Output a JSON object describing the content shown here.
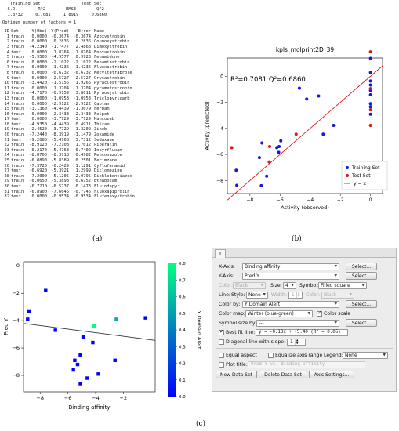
{
  "panel_a": {
    "header_line1": "   Training Set                Test Set",
    "header_line2": "  S.D.        R^2        RMSE        Q^2",
    "stats_line": "  1.8732     0.7081     1.8919     0.6860",
    "optimum_line": "Optimum number of factors = 1",
    "columns": {
      "id": "ID",
      "set": "Set",
      "obs": "Y(Obs)",
      "pred": "Y(Pred)",
      "err": "Error",
      "name": "Name"
    },
    "rows": [
      [
        "1",
        "train",
        "0.0000",
        "-0.3674",
        "-0.3674",
        "Azoxystrobin"
      ],
      [
        "2",
        "train",
        "0.0000",
        "0.2836",
        "0.2836",
        "Coumoxystrobin"
      ],
      [
        "3",
        "train",
        "-4.2340",
        "-1.7477",
        "2.4863",
        "Dimoxystrobin"
      ],
      [
        "4",
        "test",
        "0.0000",
        "1.8764",
        "1.8764",
        "Enoxastrobin"
      ],
      [
        "5",
        "train",
        "-5.9500",
        "-4.9577",
        "0.9923",
        "Fenamidone"
      ],
      [
        "6",
        "train",
        "0.0000",
        "-2.1022",
        "-2.1022",
        "Fenaminstrobin"
      ],
      [
        "7",
        "train",
        "0.0000",
        "-1.4236",
        "-1.4236",
        "Fluoxastrobin"
      ],
      [
        "8",
        "train",
        "0.0000",
        "-0.6732",
        "-0.6732",
        "Metyltetraprole"
      ],
      [
        "9",
        "test",
        "0.0000",
        "-2.5727",
        "-2.5727",
        "Orysastrobin"
      ],
      [
        "10",
        "train",
        "-3.4420",
        "-1.5155",
        "1.9265",
        "Pyraclostrobin"
      ],
      [
        "11",
        "train",
        "0.0000",
        "1.3704",
        "1.3704",
        "pyrametostrobin"
      ],
      [
        "12",
        "train",
        "-4.7170",
        "-0.9159",
        "3.8011",
        "Pyraoxystrobin"
      ],
      [
        "13",
        "train",
        "0.0000",
        "-1.0953",
        "-1.0953",
        "Triclopyricarb"
      ],
      [
        "14",
        "train",
        "0.0000",
        "-2.9122",
        "-2.9122",
        "Captan"
      ],
      [
        "15",
        "train",
        "-3.1360",
        "-4.4439",
        "-1.3079",
        "Ferbam"
      ],
      [
        "16",
        "train",
        "0.0000",
        "-2.3433",
        "-2.3433",
        "Folpet"
      ],
      [
        "17",
        "test",
        "0.0000",
        "-3.7729",
        "-3.7729",
        "Mancozeb"
      ],
      [
        "18",
        "test",
        "-4.9350",
        "-4.4439",
        "0.4911",
        "Thiram"
      ],
      [
        "19",
        "train",
        "-2.4520",
        "-3.7729",
        "-1.3209",
        "Zineb"
      ],
      [
        "20",
        "train",
        "-7.2440",
        "-8.3919",
        "-1.1479",
        "Zoxamide"
      ],
      [
        "21",
        "test",
        "-9.2080",
        "-5.4768",
        "3.7312",
        "Sedaxane"
      ],
      [
        "22",
        "train",
        "-8.9120",
        "-7.2108",
        "1.7012",
        "Piperalin"
      ],
      [
        "23",
        "train",
        "-6.2170",
        "-5.4768",
        "0.7402",
        "Inpyrfluxam"
      ],
      [
        "24",
        "train",
        "-8.8700",
        "-8.3718",
        "0.4982",
        "Penconazole"
      ],
      [
        "25",
        "train",
        "-6.0890",
        "-5.8389",
        "0.2501",
        "Ferimzone"
      ],
      [
        "26",
        "train",
        "-7.3720",
        "-6.2429",
        "1.1291",
        "Cyflufenamid"
      ],
      [
        "27",
        "test",
        "-6.6920",
        "-5.3921",
        "1.2999",
        "Diclomezine"
      ],
      [
        "28",
        "train",
        "-7.2000",
        "-5.1205",
        "2.0795",
        "Dichlobentiazox"
      ],
      [
        "29",
        "train",
        "-6.0650",
        "-5.3898",
        "0.6752",
        "Ethaboxam"
      ],
      [
        "30",
        "test",
        "-6.7210",
        "-6.5737",
        "0.1473",
        "Fluindapyr"
      ],
      [
        "31",
        "train",
        "-6.8900",
        "-7.6645",
        "-0.7745",
        "Fluoxapiprolin"
      ],
      [
        "32",
        "test",
        "0.0000",
        "-0.9534",
        "-0.9534",
        "Flufenoxystrobin"
      ]
    ],
    "caption": "(a)"
  },
  "panel_b": {
    "caption": "(b)",
    "chart_data": {
      "type": "scatter",
      "title": "kpls_molprint2D_39",
      "annotation": "R²=0.7081 Q²=0.6860",
      "xlabel": "Activity (observed)",
      "ylabel": "Activity (predicted)",
      "xlim": [
        -9.5,
        0.8
      ],
      "ylim": [
        -9.0,
        1.4
      ],
      "xticks": [
        -8,
        -6,
        -4,
        -2,
        0
      ],
      "yticks": [
        -8,
        -6,
        -4,
        -2,
        0
      ],
      "grid": false,
      "legend_position": "bottom-right",
      "series": [
        {
          "name": "Training Set",
          "color": "#1515e0",
          "points": [
            [
              0,
              -0.3674
            ],
            [
              0,
              0.2836
            ],
            [
              -4.234,
              -1.7477
            ],
            [
              -5.95,
              -4.9577
            ],
            [
              0,
              -2.1022
            ],
            [
              0,
              -1.4236
            ],
            [
              0,
              -0.6732
            ],
            [
              -3.442,
              -1.5155
            ],
            [
              0,
              1.3704
            ],
            [
              -4.717,
              -0.9159
            ],
            [
              0,
              -1.0953
            ],
            [
              0,
              -2.9122
            ],
            [
              -3.136,
              -4.4439
            ],
            [
              0,
              -2.3433
            ],
            [
              -2.452,
              -3.7729
            ],
            [
              -7.244,
              -8.3919
            ],
            [
              -8.912,
              -7.2108
            ],
            [
              -6.217,
              -5.4768
            ],
            [
              -8.87,
              -8.3718
            ],
            [
              -6.089,
              -5.8389
            ],
            [
              -7.372,
              -6.2429
            ],
            [
              -7.2,
              -5.1205
            ],
            [
              -6.065,
              -5.3898
            ],
            [
              -6.89,
              -7.6645
            ]
          ]
        },
        {
          "name": "Test Set",
          "color": "#e01515",
          "points": [
            [
              0,
              1.8764
            ],
            [
              0,
              -2.5727
            ],
            [
              0,
              -3.7729
            ],
            [
              -4.935,
              -4.4439
            ],
            [
              -9.208,
              -5.4768
            ],
            [
              -6.692,
              -5.3921
            ],
            [
              -6.721,
              -6.5737
            ],
            [
              0,
              -0.9534
            ]
          ]
        },
        {
          "name": "y = x",
          "color": "#e01515",
          "line": [
            [
              -9.5,
              -9.5
            ],
            [
              1.4,
              1.4
            ]
          ]
        }
      ]
    }
  },
  "panel_c": {
    "caption": "(c)",
    "chart_data": {
      "type": "scatter",
      "xlabel": "Binding affinity",
      "ylabel": "Pred Y",
      "colorbar_label": "Y Domain Alert",
      "xlim": [
        -9.2,
        0.3
      ],
      "ylim": [
        -9.2,
        0.3
      ],
      "xticks": [
        -8,
        -6,
        -4,
        -2
      ],
      "yticks": [
        -8,
        -6,
        -4,
        -2,
        0
      ],
      "colorbar_ticks": [
        0.0,
        0.1,
        0.2,
        0.3,
        0.4,
        0.5,
        0.6,
        0.7,
        0.8
      ],
      "colormap": "winter",
      "fit_line": {
        "slope": -0.13,
        "intercept": -5.4
      },
      "points": [
        {
          "x": -7.6,
          "y": -1.8,
          "c": 0.0
        },
        {
          "x": -8.8,
          "y": -3.3,
          "c": 0.0
        },
        {
          "x": -8.9,
          "y": -3.9,
          "c": 0.0
        },
        {
          "x": -6.9,
          "y": -4.7,
          "c": 0.0
        },
        {
          "x": -2.5,
          "y": -3.9,
          "c": 0.55
        },
        {
          "x": -4.1,
          "y": -4.4,
          "c": 0.8
        },
        {
          "x": -4.9,
          "y": -5.2,
          "c": 0.0
        },
        {
          "x": -4.2,
          "y": -5.6,
          "c": 0.0
        },
        {
          "x": -0.4,
          "y": -3.8,
          "c": 0.0
        },
        {
          "x": -5.1,
          "y": -6.5,
          "c": 0.0
        },
        {
          "x": -5.5,
          "y": -6.9,
          "c": 0.0
        },
        {
          "x": -2.6,
          "y": -6.9,
          "c": 0.0
        },
        {
          "x": -5.3,
          "y": -7.2,
          "c": 0.0
        },
        {
          "x": -5.6,
          "y": -7.6,
          "c": 0.0
        },
        {
          "x": -3.8,
          "y": -7.9,
          "c": 0.0
        },
        {
          "x": -4.6,
          "y": -8.2,
          "c": 0.0
        },
        {
          "x": -5.1,
          "y": -8.6,
          "c": 0.0
        }
      ]
    }
  },
  "dialog": {
    "tab": "1",
    "x_axis": {
      "label": "X-Axis:",
      "value": "Binding affinity",
      "button": "Select..."
    },
    "y_axis": {
      "label": "Y-Axis:",
      "value": "Pred Y",
      "button": "Select..."
    },
    "color_row": {
      "color_label": "Color:",
      "color_value": "Black",
      "size_label": "Size:",
      "size_value": "4",
      "symbol_label": "Symbol:",
      "symbol_value": "Filled square"
    },
    "line_row": {
      "line_label": "Line:",
      "style_label": "Style:",
      "style_value": "None",
      "width_label": "Width:",
      "width_value": "1",
      "color_label": "Color:",
      "color_value": "Black"
    },
    "color_by": {
      "label": "Color by:",
      "value": "Y Domain Alert",
      "button": "Select..."
    },
    "color_map": {
      "label": "Color map:",
      "value": "Winter (blue-green)",
      "scale_label": "Color scale"
    },
    "symbol_size": {
      "label": "Symbol size by:",
      "value": "---",
      "button": "Select..."
    },
    "best_fit": {
      "label": "Best fit line:",
      "value": "y = -0.13x + -5.40 (R² = 0.05)"
    },
    "diagonal": {
      "label": "Diagonal line with slope:",
      "value": "1"
    },
    "equal_aspect": "Equal aspect",
    "equalize_axis": "Equalize axis range",
    "legend": {
      "label": "Legend:",
      "value": "None"
    },
    "plot_title": {
      "label": "Plot title:",
      "placeholder": "Pred Y vs. Binding affinity"
    },
    "buttons": {
      "new": "New Data Set",
      "delete": "Delete Data Set",
      "axis": "Axis Settings..."
    }
  }
}
